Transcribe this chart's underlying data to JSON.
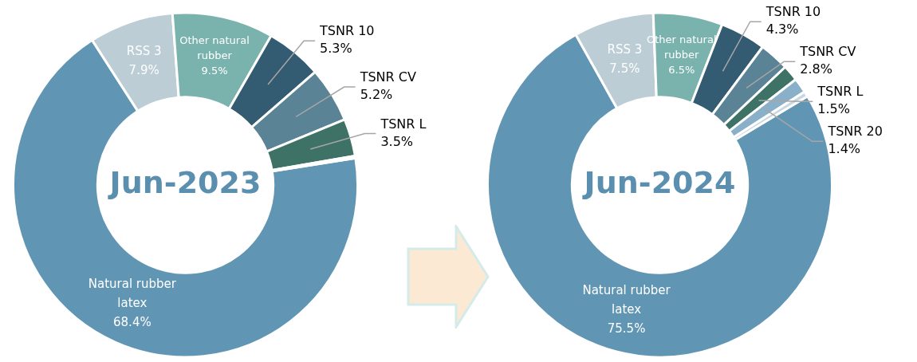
{
  "chart_data": [
    {
      "type": "donut",
      "title": "Jun-2023",
      "categories": [
        "Natural rubber latex",
        "RSS 3",
        "Other natural rubber",
        "TSNR 10",
        "TSNR CV",
        "TSNR L",
        null
      ],
      "values": [
        68.4,
        7.9,
        9.5,
        5.3,
        5.2,
        3.5,
        0.2
      ],
      "value_labels": [
        "68.4%",
        "7.9%",
        "9.5%",
        "5.3%",
        "5.2%",
        "3.5%",
        null
      ],
      "colors": [
        "#6096b4",
        "#bccdd6",
        "#7ab3ad",
        "#335b72",
        "#5b8396",
        "#3e7266",
        "#8ab0c9"
      ]
    },
    {
      "type": "donut",
      "title": "Jun-2024",
      "categories": [
        "Natural rubber latex",
        "RSS 3",
        "Other natural rubber",
        "TSNR 10",
        "TSNR CV",
        "TSNR L",
        "TSNR 20",
        null
      ],
      "values": [
        75.5,
        7.5,
        6.5,
        4.3,
        2.8,
        1.5,
        1.4,
        0.5
      ],
      "value_labels": [
        "75.5%",
        "7.5%",
        "6.5%",
        "4.3%",
        "2.8%",
        "1.5%",
        "1.4%",
        null
      ],
      "colors": [
        "#6096b4",
        "#bccdd6",
        "#7ab3ad",
        "#335b72",
        "#5b8396",
        "#3e7266",
        "#8ab0c9",
        "#c8d8e2"
      ]
    }
  ]
}
